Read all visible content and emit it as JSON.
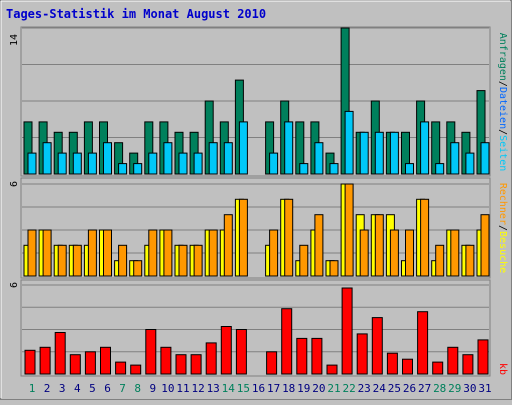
{
  "title": "Tages-Statistik im Monat August 2010",
  "colors": {
    "background": "#c0c0c0",
    "title": "#0000cc",
    "anfragen": "#00805c",
    "dateien": "#00c8f8",
    "seiten": "#0066ff",
    "rechner": "#ffff00",
    "besuche": "#ff9800",
    "kb": "#ff0000",
    "weekday_label": "#000080",
    "weekend_label": "#00805c",
    "grid": "#808080"
  },
  "chart_data": [
    {
      "type": "bar",
      "panel": "top",
      "ymax": 14,
      "ymax_label": "14",
      "grid": true,
      "legend": [
        {
          "text": "Anfragen",
          "color": "#00805c"
        },
        {
          "text": "Dateien",
          "color": "#0066ff"
        },
        {
          "text": "Seiten",
          "color": "#00c8f8"
        }
      ],
      "x": [
        "1",
        "2",
        "3",
        "4",
        "5",
        "6",
        "7",
        "8",
        "9",
        "10",
        "11",
        "12",
        "13",
        "14",
        "15",
        "16",
        "17",
        "18",
        "19",
        "20",
        "21",
        "22",
        "23",
        "24",
        "25",
        "26",
        "27",
        "28",
        "29",
        "30",
        "31"
      ],
      "series": [
        {
          "name": "Anfragen",
          "values": [
            5,
            5,
            4,
            4,
            5,
            5,
            3,
            2,
            5,
            5,
            4,
            4,
            7,
            5,
            9,
            0,
            5,
            7,
            5,
            5,
            2,
            14,
            4,
            7,
            4,
            4,
            7,
            5,
            5,
            4,
            8
          ]
        },
        {
          "name": "Dateien",
          "values": [
            2,
            3,
            2,
            2,
            2,
            3,
            1,
            1,
            2,
            3,
            2,
            2,
            3,
            3,
            5,
            0,
            2,
            5,
            1,
            3,
            1,
            6,
            4,
            4,
            4,
            1,
            5,
            1,
            3,
            2,
            3
          ]
        }
      ]
    },
    {
      "type": "bar",
      "panel": "middle",
      "ymax": 6,
      "ymax_label": "6",
      "grid": true,
      "legend": [
        {
          "text": "Rechner",
          "color": "#ff9800"
        },
        {
          "text": "Besuche",
          "color": "#ffff00"
        }
      ],
      "x": [
        "1",
        "2",
        "3",
        "4",
        "5",
        "6",
        "7",
        "8",
        "9",
        "10",
        "11",
        "12",
        "13",
        "14",
        "15",
        "16",
        "17",
        "18",
        "19",
        "20",
        "21",
        "22",
        "23",
        "24",
        "25",
        "26",
        "27",
        "28",
        "29",
        "30",
        "31"
      ],
      "series": [
        {
          "name": "Rechner",
          "values": [
            2,
            3,
            2,
            2,
            2,
            3,
            1,
            1,
            2,
            3,
            2,
            2,
            3,
            3,
            5,
            0,
            2,
            5,
            1,
            3,
            1,
            6,
            4,
            4,
            4,
            1,
            5,
            1,
            3,
            2,
            3
          ]
        },
        {
          "name": "Besuche",
          "values": [
            3,
            3,
            2,
            2,
            3,
            3,
            2,
            1,
            3,
            3,
            2,
            2,
            3,
            4,
            5,
            0,
            3,
            5,
            2,
            4,
            1,
            6,
            3,
            4,
            3,
            3,
            5,
            2,
            3,
            2,
            4
          ]
        }
      ]
    },
    {
      "type": "bar",
      "panel": "bottom",
      "ymax": 6,
      "ymax_label": "6",
      "grid": true,
      "legend": [
        {
          "text": "kb",
          "color": "#ff0000"
        }
      ],
      "x": [
        "1",
        "2",
        "3",
        "4",
        "5",
        "6",
        "7",
        "8",
        "9",
        "10",
        "11",
        "12",
        "13",
        "14",
        "15",
        "16",
        "17",
        "18",
        "19",
        "20",
        "21",
        "22",
        "23",
        "24",
        "25",
        "26",
        "27",
        "28",
        "29",
        "30",
        "31"
      ],
      "series": [
        {
          "name": "kb",
          "values": [
            1.6,
            1.8,
            2.8,
            1.3,
            1.5,
            1.8,
            0.8,
            0.6,
            3.0,
            1.8,
            1.3,
            1.3,
            2.1,
            3.2,
            3.0,
            0,
            1.5,
            4.4,
            2.4,
            2.4,
            0.6,
            5.8,
            2.7,
            3.8,
            1.4,
            1.0,
            4.2,
            0.8,
            1.8,
            1.3,
            2.3
          ]
        }
      ]
    }
  ],
  "x_labels": [
    {
      "text": "1",
      "weekend": true
    },
    {
      "text": "2",
      "weekend": false
    },
    {
      "text": "3",
      "weekend": false
    },
    {
      "text": "4",
      "weekend": false
    },
    {
      "text": "5",
      "weekend": false
    },
    {
      "text": "6",
      "weekend": false
    },
    {
      "text": "7",
      "weekend": true
    },
    {
      "text": "8",
      "weekend": true
    },
    {
      "text": "9",
      "weekend": false
    },
    {
      "text": "10",
      "weekend": false
    },
    {
      "text": "11",
      "weekend": false
    },
    {
      "text": "12",
      "weekend": false
    },
    {
      "text": "13",
      "weekend": false
    },
    {
      "text": "14",
      "weekend": true
    },
    {
      "text": "15",
      "weekend": true
    },
    {
      "text": "16",
      "weekend": false
    },
    {
      "text": "17",
      "weekend": false
    },
    {
      "text": "18",
      "weekend": false
    },
    {
      "text": "19",
      "weekend": false
    },
    {
      "text": "20",
      "weekend": false
    },
    {
      "text": "21",
      "weekend": true
    },
    {
      "text": "22",
      "weekend": true
    },
    {
      "text": "23",
      "weekend": false
    },
    {
      "text": "24",
      "weekend": false
    },
    {
      "text": "25",
      "weekend": false
    },
    {
      "text": "26",
      "weekend": false
    },
    {
      "text": "27",
      "weekend": false
    },
    {
      "text": "28",
      "weekend": true
    },
    {
      "text": "29",
      "weekend": true
    },
    {
      "text": "30",
      "weekend": false
    },
    {
      "text": "31",
      "weekend": false
    }
  ],
  "right_labels": {
    "top": [
      {
        "text": "Anfragen",
        "color": "#00805c"
      },
      {
        "text": "/",
        "color": "#000000"
      },
      {
        "text": "Dateien",
        "color": "#0066ff"
      },
      {
        "text": "/",
        "color": "#000000"
      },
      {
        "text": "Seiten",
        "color": "#00c8f8"
      }
    ],
    "middle": [
      {
        "text": "Rechner",
        "color": "#ff9800"
      },
      {
        "text": "/",
        "color": "#000000"
      },
      {
        "text": "Besuche",
        "color": "#ffff00"
      }
    ],
    "bottom": [
      {
        "text": "kb",
        "color": "#ff0000"
      }
    ]
  }
}
